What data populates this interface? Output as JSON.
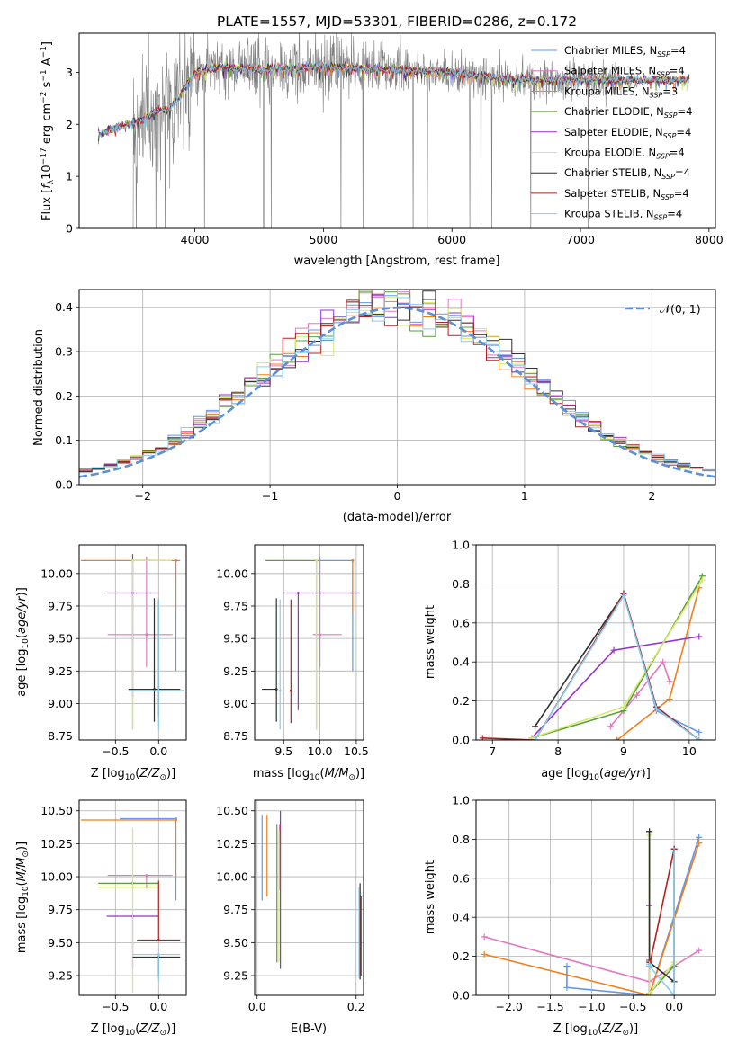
{
  "figure": {
    "title": "PLATE=1557, MJD=53301, FIBERID=0286, z=0.172"
  },
  "colors": {
    "Chabrier MILES": "#6495ed",
    "Salpeter MILES": "#e377c2",
    "Kroupa MILES": "#ef7f1a",
    "Chabrier ELODIE": "#5a9e3a",
    "Salpeter ELODIE": "#9932cc",
    "Kroupa ELODIE": "#d4ea6b",
    "Chabrier STELIB": "#303030",
    "Salpeter STELIB": "#b22222",
    "Kroupa STELIB": "#87ceeb",
    "data": "#808080"
  },
  "chart_data": [
    {
      "id": "spectrum",
      "type": "line",
      "title": "PLATE=1557, MJD=53301, FIBERID=0286, z=0.172",
      "xlabel": "wavelength [Angstrom, rest frame]",
      "ylabel": "Flux [f_λ 10^-17 erg cm^-2 s^-1 A^-1]",
      "xlim": [
        3100,
        8050
      ],
      "ylim": [
        0,
        3.75
      ],
      "xticks": [
        4000,
        5000,
        6000,
        7000,
        8000
      ],
      "yticks": [
        0,
        1,
        2,
        3
      ],
      "legend_position": "top-right",
      "legend": [
        {
          "label": "Chabrier MILES, N",
          "sub": "SSP",
          "suffix": "=4",
          "model": "Chabrier MILES"
        },
        {
          "label": "Salpeter MILES, N",
          "sub": "SSP",
          "suffix": "=4",
          "model": "Salpeter MILES"
        },
        {
          "label": "Kroupa MILES, N",
          "sub": "SSP",
          "suffix": "=3",
          "model": "Kroupa MILES"
        },
        {
          "label": "Chabrier ELODIE, N",
          "sub": "SSP",
          "suffix": "=4",
          "model": "Chabrier ELODIE"
        },
        {
          "label": "Salpeter ELODIE, N",
          "sub": "SSP",
          "suffix": "=4",
          "model": "Salpeter ELODIE"
        },
        {
          "label": "Kroupa ELODIE, N",
          "sub": "SSP",
          "suffix": "=4",
          "model": "Kroupa ELODIE"
        },
        {
          "label": "Chabrier STELIB, N",
          "sub": "SSP",
          "suffix": "=4",
          "model": "Chabrier STELIB"
        },
        {
          "label": "Salpeter STELIB, N",
          "sub": "SSP",
          "suffix": "=4",
          "model": "Salpeter STELIB"
        },
        {
          "label": "Kroupa STELIB, N",
          "sub": "SSP",
          "suffix": "=4",
          "model": "Kroupa STELIB"
        }
      ],
      "model_continuum": {
        "x": [
          3250,
          3400,
          3500,
          3600,
          3700,
          3800,
          3900,
          4000,
          4200,
          4500,
          5000,
          5500,
          6000,
          6500,
          7000,
          7500,
          7850
        ],
        "y": [
          1.8,
          1.95,
          2.0,
          2.1,
          2.25,
          2.3,
          2.6,
          3.0,
          3.1,
          3.05,
          3.1,
          3.05,
          3.0,
          2.85,
          2.85,
          2.85,
          2.85
        ]
      },
      "observed_data_range": [
        3520,
        7320
      ]
    },
    {
      "id": "residuals",
      "type": "histogram",
      "xlabel": "(data-model)/error",
      "ylabel": "Normed distribution",
      "xlim": [
        -2.5,
        2.5
      ],
      "ylim": [
        0,
        0.44
      ],
      "xticks": [
        -2,
        -1,
        0,
        1,
        2
      ],
      "yticks": [
        0,
        0.1,
        0.2,
        0.3,
        0.4
      ],
      "legend": "𝒩(0, 1)",
      "legend_position": "top-right",
      "bin_width": 0.1,
      "bin_start": -2.5,
      "reference": "normal(0,1)"
    },
    {
      "id": "age_vs_Z",
      "type": "errorbar",
      "xlabel": "Z [log10(Z/Z☉)]",
      "ylabel": "age [log10(age/yr)]",
      "xlim": [
        -0.92,
        0.32
      ],
      "ylim": [
        8.72,
        10.22
      ],
      "xticks": [
        -0.5,
        0.0
      ],
      "yticks": [
        8.75,
        9.0,
        9.25,
        9.5,
        9.75,
        10.0
      ],
      "points": [
        {
          "model": "Chabrier MILES",
          "x": 0.2,
          "xerr": [
            0.0,
            0.05
          ],
          "y": 10.1,
          "yerr": [
            0.85,
            0.0
          ]
        },
        {
          "model": "Salpeter MILES",
          "x": -0.14,
          "xerr": [
            0.45,
            0.3
          ],
          "y": 9.53,
          "yerr": [
            0.25,
            0.6
          ]
        },
        {
          "model": "Kroupa MILES",
          "x": 0.2,
          "xerr": [
            1.1,
            0.0
          ],
          "y": 10.1,
          "yerr": [
            0.4,
            0.0
          ]
        },
        {
          "model": "Chabrier ELODIE",
          "x": -0.3,
          "xerr": [
            0.0,
            0.25
          ],
          "y": 10.1,
          "yerr": [
            1.3,
            0.0
          ]
        },
        {
          "model": "Salpeter ELODIE",
          "x": -0.3,
          "xerr": [
            0.3,
            0.3
          ],
          "y": 9.85,
          "yerr": [
            0.8,
            0.3
          ]
        },
        {
          "model": "Kroupa ELODIE",
          "x": -0.3,
          "xerr": [
            0.0,
            0.45
          ],
          "y": 10.1,
          "yerr": [
            1.3,
            0.0
          ]
        },
        {
          "model": "Chabrier STELIB",
          "x": -0.05,
          "xerr": [
            0.3,
            0.3
          ],
          "y": 9.11,
          "yerr": [
            0.25,
            0.7
          ]
        },
        {
          "model": "Salpeter STELIB",
          "x": 0.0,
          "xerr": [
            0.0,
            0.0
          ],
          "y": 9.1,
          "yerr": [
            0.2,
            0.7
          ]
        },
        {
          "model": "Kroupa STELIB",
          "x": 0.0,
          "xerr": [
            0.35,
            0.3
          ],
          "y": 9.1,
          "yerr": [
            0.3,
            0.7
          ]
        }
      ]
    },
    {
      "id": "age_vs_mass",
      "type": "errorbar",
      "xlabel": "mass [log10(M/M☉)]",
      "ylabel": "",
      "xlim": [
        9.1,
        10.6
      ],
      "ylim": [
        8.72,
        10.22
      ],
      "xticks": [
        9.5,
        10.0,
        10.5
      ],
      "yticks": [
        8.75,
        9.0,
        9.25,
        9.5,
        9.75,
        10.0
      ],
      "points": [
        {
          "model": "Chabrier MILES",
          "x": 10.45,
          "xerr": [
            0.5,
            0.0
          ],
          "y": 10.1,
          "yerr": [
            0.85,
            0.0
          ]
        },
        {
          "model": "Salpeter MILES",
          "x": 10.0,
          "xerr": [
            0.1,
            0.3
          ],
          "y": 9.53,
          "yerr": [
            0.25,
            0.6
          ]
        },
        {
          "model": "Kroupa MILES",
          "x": 10.45,
          "xerr": [
            0.0,
            0.0
          ],
          "y": 10.1,
          "yerr": [
            0.4,
            0.0
          ]
        },
        {
          "model": "Chabrier ELODIE",
          "x": 9.95,
          "xerr": [
            0.7,
            0.0
          ],
          "y": 10.1,
          "yerr": [
            1.3,
            0.0
          ]
        },
        {
          "model": "Salpeter ELODIE",
          "x": 9.7,
          "xerr": [
            0.2,
            0.85
          ],
          "y": 9.85,
          "yerr": [
            0.9,
            0.0
          ]
        },
        {
          "model": "Kroupa ELODIE",
          "x": 9.95,
          "xerr": [
            0.0,
            0.0
          ],
          "y": 10.1,
          "yerr": [
            1.3,
            0.0
          ]
        },
        {
          "model": "Chabrier STELIB",
          "x": 9.4,
          "xerr": [
            0.2,
            0.0
          ],
          "y": 9.11,
          "yerr": [
            0.25,
            0.7
          ]
        },
        {
          "model": "Salpeter STELIB",
          "x": 9.6,
          "xerr": [
            0.0,
            0.0
          ],
          "y": 9.1,
          "yerr": [
            0.25,
            0.7
          ]
        },
        {
          "model": "Kroupa STELIB",
          "x": 9.45,
          "xerr": [
            0.0,
            0.0
          ],
          "y": 9.1,
          "yerr": [
            0.3,
            0.7
          ]
        }
      ]
    },
    {
      "id": "weight_vs_age",
      "type": "line",
      "xlabel": "age [log10(age/yr)]",
      "ylabel": "mass weight",
      "xlim": [
        6.75,
        10.4
      ],
      "ylim": [
        0,
        1.0
      ],
      "xticks": [
        7,
        8,
        9,
        10
      ],
      "yticks": [
        0,
        0.2,
        0.4,
        0.6,
        0.8,
        1.0
      ],
      "series": [
        {
          "model": "Chabrier MILES",
          "x": [
            9.0,
            9.5,
            10.15
          ],
          "y": [
            0.75,
            0.15,
            0.04
          ]
        },
        {
          "model": "Salpeter MILES",
          "x": [
            8.8,
            9.2,
            9.6,
            9.7
          ],
          "y": [
            0.07,
            0.23,
            0.4,
            0.3
          ]
        },
        {
          "model": "Kroupa MILES",
          "x": [
            8.9,
            9.7,
            10.15
          ],
          "y": [
            0.0,
            0.21,
            0.78
          ]
        },
        {
          "model": "Chabrier ELODIE",
          "x": [
            7.6,
            9.0,
            10.2
          ],
          "y": [
            0.01,
            0.15,
            0.84
          ]
        },
        {
          "model": "Salpeter ELODIE",
          "x": [
            7.6,
            8.85,
            10.15
          ],
          "y": [
            0.01,
            0.46,
            0.53
          ]
        },
        {
          "model": "Kroupa ELODIE",
          "x": [
            7.6,
            9.0,
            10.2
          ],
          "y": [
            0.01,
            0.17,
            0.82
          ]
        },
        {
          "model": "Chabrier STELIB",
          "x": [
            7.65,
            9.0,
            9.5,
            10.15
          ],
          "y": [
            0.07,
            0.75,
            0.17,
            0.0
          ]
        },
        {
          "model": "Salpeter STELIB",
          "x": [
            6.85,
            7.65,
            9.0,
            9.5,
            10.15
          ],
          "y": [
            0.01,
            0.0,
            0.75,
            0.17,
            0.0
          ]
        },
        {
          "model": "Kroupa STELIB",
          "x": [
            7.65,
            9.0,
            9.5,
            10.15
          ],
          "y": [
            0.0,
            0.74,
            0.16,
            0.0
          ]
        }
      ]
    },
    {
      "id": "mass_vs_Z",
      "type": "errorbar",
      "xlabel": "Z [log10(Z/Z☉)]",
      "ylabel": "mass [log10(M/M☉)]",
      "xlim": [
        -0.92,
        0.32
      ],
      "ylim": [
        9.1,
        10.58
      ],
      "xticks": [
        -0.5,
        0.0
      ],
      "yticks": [
        9.25,
        9.5,
        9.75,
        10.0,
        10.25,
        10.5
      ],
      "points": [
        {
          "model": "Chabrier MILES",
          "x": 0.2,
          "xerr": [
            0.65,
            0.0
          ],
          "y": 10.44,
          "yerr": [
            0.62,
            0.0
          ]
        },
        {
          "model": "Salpeter MILES",
          "x": -0.14,
          "xerr": [
            0.45,
            0.3
          ],
          "y": 10.01,
          "yerr": [
            0.1,
            0.0
          ]
        },
        {
          "model": "Kroupa MILES",
          "x": 0.2,
          "xerr": [
            1.1,
            0.0
          ],
          "y": 10.43,
          "yerr": [
            0.45,
            0.0
          ]
        },
        {
          "model": "Chabrier ELODIE",
          "x": -0.3,
          "xerr": [
            0.4,
            0.3
          ],
          "y": 9.95,
          "yerr": [
            0.0,
            0.0
          ]
        },
        {
          "model": "Salpeter ELODIE",
          "x": -0.3,
          "xerr": [
            0.3,
            0.3
          ],
          "y": 9.7,
          "yerr": [
            0.4,
            0.0
          ]
        },
        {
          "model": "Kroupa ELODIE",
          "x": -0.3,
          "xerr": [
            0.4,
            0.3
          ],
          "y": 9.92,
          "yerr": [
            0.8,
            0.45
          ]
        },
        {
          "model": "Chabrier STELIB",
          "x": 0.0,
          "xerr": [
            0.3,
            0.25
          ],
          "y": 9.39,
          "yerr": [
            0.15,
            0.0
          ]
        },
        {
          "model": "Salpeter STELIB",
          "x": 0.0,
          "xerr": [
            0.25,
            0.25
          ],
          "y": 9.52,
          "yerr": [
            0.0,
            0.45
          ]
        },
        {
          "model": "Kroupa STELIB",
          "x": 0.0,
          "xerr": [
            0.3,
            0.25
          ],
          "y": 9.41,
          "yerr": [
            0.2,
            0.0
          ]
        }
      ]
    },
    {
      "id": "mass_vs_EBV",
      "type": "errorbar",
      "xlabel": "E(B-V)",
      "ylabel": "",
      "xlim": [
        -0.005,
        0.215
      ],
      "ylim": [
        9.1,
        10.58
      ],
      "xticks": [
        0.0,
        0.2
      ],
      "yticks": [
        9.25,
        9.5,
        9.75,
        10.0,
        10.25,
        10.5
      ],
      "points": [
        {
          "model": "Chabrier MILES",
          "x": 0.01,
          "yrange": [
            9.82,
            10.47
          ]
        },
        {
          "model": "Salpeter MILES",
          "x": 0.045,
          "yrange": [
            9.9,
            10.4
          ]
        },
        {
          "model": "Kroupa MILES",
          "x": 0.02,
          "yrange": [
            9.85,
            10.47
          ]
        },
        {
          "model": "Chabrier ELODIE",
          "x": 0.04,
          "yrange": [
            9.35,
            10.4
          ]
        },
        {
          "model": "Salpeter ELODIE",
          "x": 0.047,
          "yrange": [
            9.3,
            10.5
          ]
        },
        {
          "model": "Kroupa ELODIE",
          "x": 0.044,
          "yrange": [
            9.35,
            10.35
          ]
        },
        {
          "model": "Chabrier STELIB",
          "x": 0.208,
          "yrange": [
            9.22,
            9.95
          ]
        },
        {
          "model": "Salpeter STELIB",
          "x": 0.21,
          "yrange": [
            9.25,
            9.85
          ]
        },
        {
          "model": "Kroupa STELIB",
          "x": 0.206,
          "yrange": [
            9.23,
            9.92
          ]
        }
      ]
    },
    {
      "id": "weight_vs_Z",
      "type": "line",
      "xlabel": "Z [log10(Z/Z☉)]",
      "ylabel": "mass weight",
      "xlim": [
        -2.4,
        0.5
      ],
      "ylim": [
        0,
        1.0
      ],
      "xticks": [
        -2.0,
        -1.5,
        -1.0,
        -0.5,
        0.0
      ],
      "yticks": [
        0,
        0.2,
        0.4,
        0.6,
        0.8,
        1.0
      ],
      "series": [
        {
          "model": "Chabrier MILES",
          "x": [
            -1.3,
            -1.3,
            -0.3,
            0.3
          ],
          "y": [
            0.15,
            0.04,
            0.0,
            0.81
          ]
        },
        {
          "model": "Salpeter MILES",
          "x": [
            -2.3,
            -0.3,
            0.3
          ],
          "y": [
            0.3,
            0.07,
            0.23
          ]
        },
        {
          "model": "Kroupa MILES",
          "x": [
            -2.3,
            -0.3,
            0.3
          ],
          "y": [
            0.21,
            0.0,
            0.78
          ]
        },
        {
          "model": "Chabrier ELODIE",
          "x": [
            -0.3,
            -0.3,
            0.0
          ],
          "y": [
            0.84,
            0.01,
            0.15
          ]
        },
        {
          "model": "Salpeter ELODIE",
          "x": [
            -0.3,
            -0.3
          ],
          "y": [
            0.46,
            0.01
          ]
        },
        {
          "model": "Kroupa ELODIE",
          "x": [
            -0.3,
            -0.3,
            0.0
          ],
          "y": [
            0.82,
            0.01,
            0.17
          ]
        },
        {
          "model": "Chabrier STELIB",
          "x": [
            -0.3,
            -0.3,
            0.0,
            0.0
          ],
          "y": [
            0.84,
            0.17,
            0.07,
            0.75
          ]
        },
        {
          "model": "Salpeter STELIB",
          "x": [
            -0.3,
            -0.3,
            0.0
          ],
          "y": [
            0.18,
            0.15,
            0.75
          ]
        },
        {
          "model": "Kroupa STELIB",
          "x": [
            -0.3,
            -0.3,
            0.0,
            0.0
          ],
          "y": [
            0.16,
            0.15,
            0.0,
            0.74
          ]
        }
      ]
    }
  ]
}
